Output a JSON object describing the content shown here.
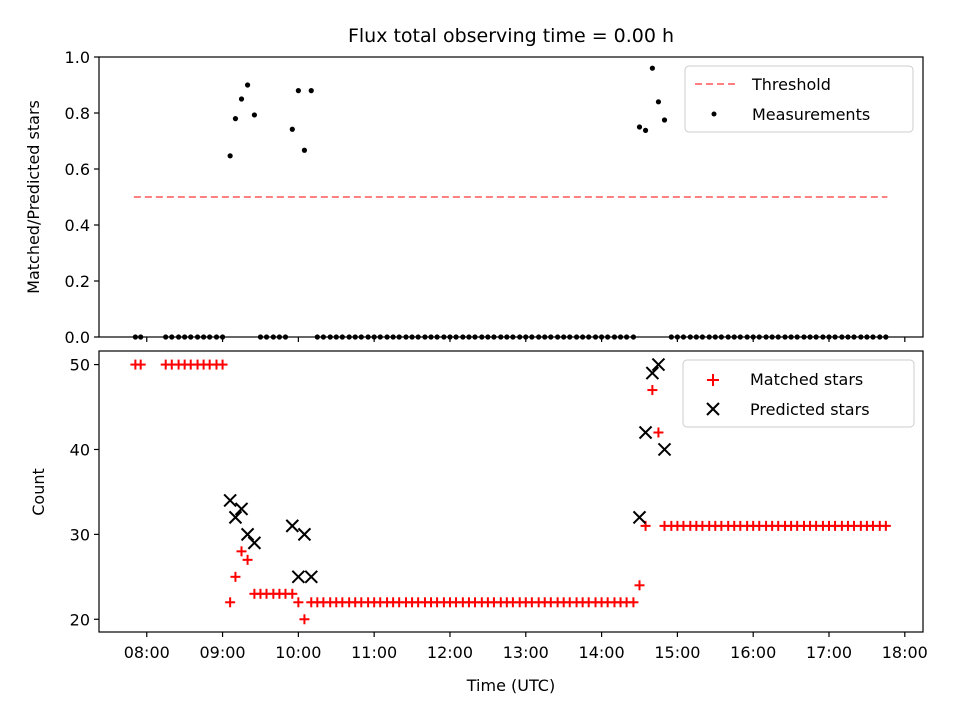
{
  "chart_data": [
    {
      "type": "scatter",
      "title": "Flux total observing time = 0.00 h",
      "xlabel": "",
      "ylabel": "Matched/Predicted stars",
      "ylim": [
        0,
        1.0
      ],
      "yticks": [
        0.0,
        0.2,
        0.4,
        0.6,
        0.8,
        1.0
      ],
      "ytick_labels": [
        "0.0",
        "0.2",
        "0.4",
        "0.6",
        "0.8",
        "1.0"
      ],
      "xlim": [
        7.37,
        18.24
      ],
      "xticks": [
        8,
        9,
        10,
        11,
        12,
        13,
        14,
        15,
        16,
        17,
        18
      ],
      "grid": false,
      "legend_position": "top-right",
      "legend": [
        "Threshold",
        "Measurements"
      ],
      "threshold": {
        "name": "Threshold",
        "y": 0.5,
        "x_range": [
          7.83,
          17.77
        ],
        "color": "#ff8080"
      },
      "series": [
        {
          "name": "Measurements",
          "marker": "dot",
          "color": "#000000",
          "points": [
            [
              7.85,
              0
            ],
            [
              7.92,
              0
            ],
            [
              8.25,
              0
            ],
            [
              8.33,
              0
            ],
            [
              8.42,
              0
            ],
            [
              8.5,
              0
            ],
            [
              8.58,
              0
            ],
            [
              8.67,
              0
            ],
            [
              8.75,
              0
            ],
            [
              8.83,
              0
            ],
            [
              8.92,
              0
            ],
            [
              9.0,
              0
            ],
            [
              9.1,
              0.647
            ],
            [
              9.17,
              0.78
            ],
            [
              9.25,
              0.85
            ],
            [
              9.33,
              0.9
            ],
            [
              9.42,
              0.793
            ],
            [
              9.5,
              0
            ],
            [
              9.58,
              0
            ],
            [
              9.67,
              0
            ],
            [
              9.75,
              0
            ],
            [
              9.83,
              0
            ],
            [
              9.92,
              0.742
            ],
            [
              10.0,
              0.88
            ],
            [
              10.08,
              0.667
            ],
            [
              10.17,
              0.88
            ],
            [
              10.25,
              0
            ],
            [
              10.33,
              0
            ],
            [
              10.42,
              0
            ],
            [
              10.5,
              0
            ],
            [
              10.58,
              0
            ],
            [
              10.67,
              0
            ],
            [
              10.75,
              0
            ],
            [
              10.83,
              0
            ],
            [
              10.92,
              0
            ],
            [
              11.0,
              0
            ],
            [
              11.08,
              0
            ],
            [
              11.17,
              0
            ],
            [
              11.25,
              0
            ],
            [
              11.33,
              0
            ],
            [
              11.42,
              0
            ],
            [
              11.5,
              0
            ],
            [
              11.58,
              0
            ],
            [
              11.67,
              0
            ],
            [
              11.75,
              0
            ],
            [
              11.83,
              0
            ],
            [
              11.92,
              0
            ],
            [
              12.0,
              0
            ],
            [
              12.08,
              0
            ],
            [
              12.17,
              0
            ],
            [
              12.25,
              0
            ],
            [
              12.33,
              0
            ],
            [
              12.42,
              0
            ],
            [
              12.5,
              0
            ],
            [
              12.58,
              0
            ],
            [
              12.67,
              0
            ],
            [
              12.75,
              0
            ],
            [
              12.83,
              0
            ],
            [
              12.92,
              0
            ],
            [
              13.0,
              0
            ],
            [
              13.08,
              0
            ],
            [
              13.17,
              0
            ],
            [
              13.25,
              0
            ],
            [
              13.33,
              0
            ],
            [
              13.42,
              0
            ],
            [
              13.5,
              0
            ],
            [
              13.58,
              0
            ],
            [
              13.67,
              0
            ],
            [
              13.75,
              0
            ],
            [
              13.83,
              0
            ],
            [
              13.92,
              0
            ],
            [
              14.0,
              0
            ],
            [
              14.08,
              0
            ],
            [
              14.17,
              0
            ],
            [
              14.25,
              0
            ],
            [
              14.33,
              0
            ],
            [
              14.42,
              0
            ],
            [
              14.5,
              0.75
            ],
            [
              14.58,
              0.738
            ],
            [
              14.67,
              0.96
            ],
            [
              14.75,
              0.84
            ],
            [
              14.83,
              0.775
            ],
            [
              14.92,
              0
            ],
            [
              15.0,
              0
            ],
            [
              15.08,
              0
            ],
            [
              15.17,
              0
            ],
            [
              15.25,
              0
            ],
            [
              15.33,
              0
            ],
            [
              15.42,
              0
            ],
            [
              15.5,
              0
            ],
            [
              15.58,
              0
            ],
            [
              15.67,
              0
            ],
            [
              15.75,
              0
            ],
            [
              15.83,
              0
            ],
            [
              15.92,
              0
            ],
            [
              16.0,
              0
            ],
            [
              16.08,
              0
            ],
            [
              16.17,
              0
            ],
            [
              16.25,
              0
            ],
            [
              16.33,
              0
            ],
            [
              16.42,
              0
            ],
            [
              16.5,
              0
            ],
            [
              16.58,
              0
            ],
            [
              16.67,
              0
            ],
            [
              16.75,
              0
            ],
            [
              16.83,
              0
            ],
            [
              16.92,
              0
            ],
            [
              17.0,
              0
            ],
            [
              17.08,
              0
            ],
            [
              17.17,
              0
            ],
            [
              17.25,
              0
            ],
            [
              17.33,
              0
            ],
            [
              17.42,
              0
            ],
            [
              17.5,
              0
            ],
            [
              17.58,
              0
            ],
            [
              17.67,
              0
            ],
            [
              17.75,
              0
            ]
          ]
        }
      ]
    },
    {
      "type": "scatter",
      "title": "",
      "xlabel": "Time (UTC)",
      "ylabel": "Count",
      "ylim": [
        18.5,
        51.6
      ],
      "yticks": [
        20,
        30,
        40,
        50
      ],
      "ytick_labels": [
        "20",
        "30",
        "40",
        "50"
      ],
      "xlim": [
        7.37,
        18.24
      ],
      "xticks": [
        8,
        9,
        10,
        11,
        12,
        13,
        14,
        15,
        16,
        17,
        18
      ],
      "xtick_labels": [
        "08:00",
        "09:00",
        "10:00",
        "11:00",
        "12:00",
        "13:00",
        "14:00",
        "15:00",
        "16:00",
        "17:00",
        "18:00"
      ],
      "grid": false,
      "legend_position": "top-right",
      "legend": [
        "Matched stars",
        "Predicted stars"
      ],
      "series": [
        {
          "name": "Matched stars",
          "marker": "plus",
          "color": "#ff0000",
          "points": [
            [
              7.85,
              50
            ],
            [
              7.92,
              50
            ],
            [
              8.25,
              50
            ],
            [
              8.33,
              50
            ],
            [
              8.42,
              50
            ],
            [
              8.5,
              50
            ],
            [
              8.58,
              50
            ],
            [
              8.67,
              50
            ],
            [
              8.75,
              50
            ],
            [
              8.83,
              50
            ],
            [
              8.92,
              50
            ],
            [
              9.0,
              50
            ],
            [
              9.1,
              22
            ],
            [
              9.17,
              25
            ],
            [
              9.25,
              28
            ],
            [
              9.33,
              27
            ],
            [
              9.42,
              23
            ],
            [
              9.5,
              23
            ],
            [
              9.58,
              23
            ],
            [
              9.67,
              23
            ],
            [
              9.75,
              23
            ],
            [
              9.83,
              23
            ],
            [
              9.92,
              23
            ],
            [
              10.0,
              22
            ],
            [
              10.08,
              20
            ],
            [
              10.17,
              22
            ],
            [
              10.25,
              22
            ],
            [
              10.33,
              22
            ],
            [
              10.42,
              22
            ],
            [
              10.5,
              22
            ],
            [
              10.58,
              22
            ],
            [
              10.67,
              22
            ],
            [
              10.75,
              22
            ],
            [
              10.83,
              22
            ],
            [
              10.92,
              22
            ],
            [
              11.0,
              22
            ],
            [
              11.08,
              22
            ],
            [
              11.17,
              22
            ],
            [
              11.25,
              22
            ],
            [
              11.33,
              22
            ],
            [
              11.42,
              22
            ],
            [
              11.5,
              22
            ],
            [
              11.58,
              22
            ],
            [
              11.67,
              22
            ],
            [
              11.75,
              22
            ],
            [
              11.83,
              22
            ],
            [
              11.92,
              22
            ],
            [
              12.0,
              22
            ],
            [
              12.08,
              22
            ],
            [
              12.17,
              22
            ],
            [
              12.25,
              22
            ],
            [
              12.33,
              22
            ],
            [
              12.42,
              22
            ],
            [
              12.5,
              22
            ],
            [
              12.58,
              22
            ],
            [
              12.67,
              22
            ],
            [
              12.75,
              22
            ],
            [
              12.83,
              22
            ],
            [
              12.92,
              22
            ],
            [
              13.0,
              22
            ],
            [
              13.08,
              22
            ],
            [
              13.17,
              22
            ],
            [
              13.25,
              22
            ],
            [
              13.33,
              22
            ],
            [
              13.42,
              22
            ],
            [
              13.5,
              22
            ],
            [
              13.58,
              22
            ],
            [
              13.67,
              22
            ],
            [
              13.75,
              22
            ],
            [
              13.83,
              22
            ],
            [
              13.92,
              22
            ],
            [
              14.0,
              22
            ],
            [
              14.08,
              22
            ],
            [
              14.17,
              22
            ],
            [
              14.25,
              22
            ],
            [
              14.33,
              22
            ],
            [
              14.42,
              22
            ],
            [
              14.5,
              24
            ],
            [
              14.58,
              31
            ],
            [
              14.67,
              47
            ],
            [
              14.75,
              42
            ],
            [
              14.83,
              31
            ],
            [
              14.92,
              31
            ],
            [
              15.0,
              31
            ],
            [
              15.08,
              31
            ],
            [
              15.17,
              31
            ],
            [
              15.25,
              31
            ],
            [
              15.33,
              31
            ],
            [
              15.42,
              31
            ],
            [
              15.5,
              31
            ],
            [
              15.58,
              31
            ],
            [
              15.67,
              31
            ],
            [
              15.75,
              31
            ],
            [
              15.83,
              31
            ],
            [
              15.92,
              31
            ],
            [
              16.0,
              31
            ],
            [
              16.08,
              31
            ],
            [
              16.17,
              31
            ],
            [
              16.25,
              31
            ],
            [
              16.33,
              31
            ],
            [
              16.42,
              31
            ],
            [
              16.5,
              31
            ],
            [
              16.58,
              31
            ],
            [
              16.67,
              31
            ],
            [
              16.75,
              31
            ],
            [
              16.83,
              31
            ],
            [
              16.92,
              31
            ],
            [
              17.0,
              31
            ],
            [
              17.08,
              31
            ],
            [
              17.17,
              31
            ],
            [
              17.25,
              31
            ],
            [
              17.33,
              31
            ],
            [
              17.42,
              31
            ],
            [
              17.5,
              31
            ],
            [
              17.58,
              31
            ],
            [
              17.67,
              31
            ],
            [
              17.75,
              31
            ]
          ]
        },
        {
          "name": "Predicted stars",
          "marker": "x",
          "color": "#000000",
          "points": [
            [
              9.1,
              34
            ],
            [
              9.17,
              32
            ],
            [
              9.25,
              33
            ],
            [
              9.33,
              30
            ],
            [
              9.42,
              29
            ],
            [
              9.92,
              31
            ],
            [
              10.0,
              25
            ],
            [
              10.08,
              30
            ],
            [
              10.17,
              25
            ],
            [
              14.5,
              32
            ],
            [
              14.58,
              42
            ],
            [
              14.67,
              49
            ],
            [
              14.75,
              50
            ],
            [
              14.83,
              40
            ]
          ]
        }
      ]
    }
  ]
}
